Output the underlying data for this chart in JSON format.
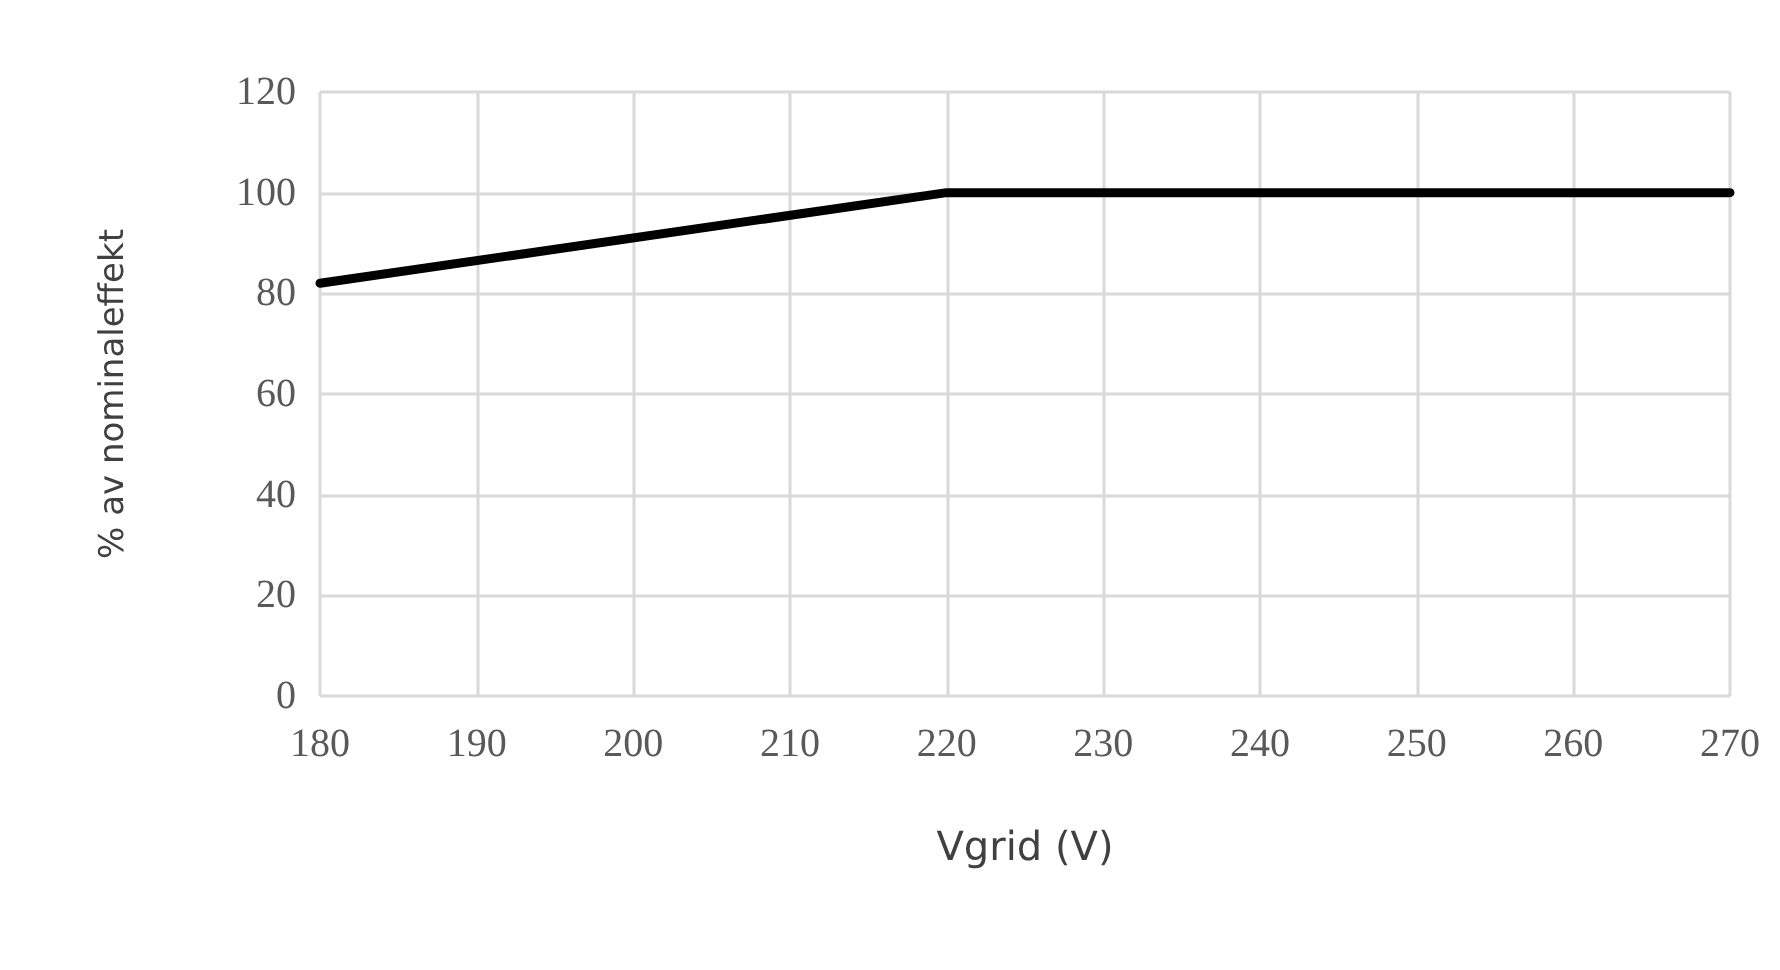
{
  "chart_data": {
    "type": "line",
    "xlabel": "Vgrid (V)",
    "ylabel": "% av nominaleffekt",
    "x": [
      180,
      220,
      270
    ],
    "series": [
      {
        "color": "#000000",
        "values": [
          82,
          100,
          100
        ]
      }
    ],
    "xlim": [
      180,
      270
    ],
    "xticks": [
      180,
      190,
      200,
      210,
      220,
      230,
      240,
      250,
      260,
      270
    ],
    "ylim": [
      0,
      120
    ],
    "yticks": [
      0,
      20,
      40,
      60,
      80,
      100,
      120
    ],
    "grid": true,
    "marker": "none",
    "line_style": "solid"
  }
}
